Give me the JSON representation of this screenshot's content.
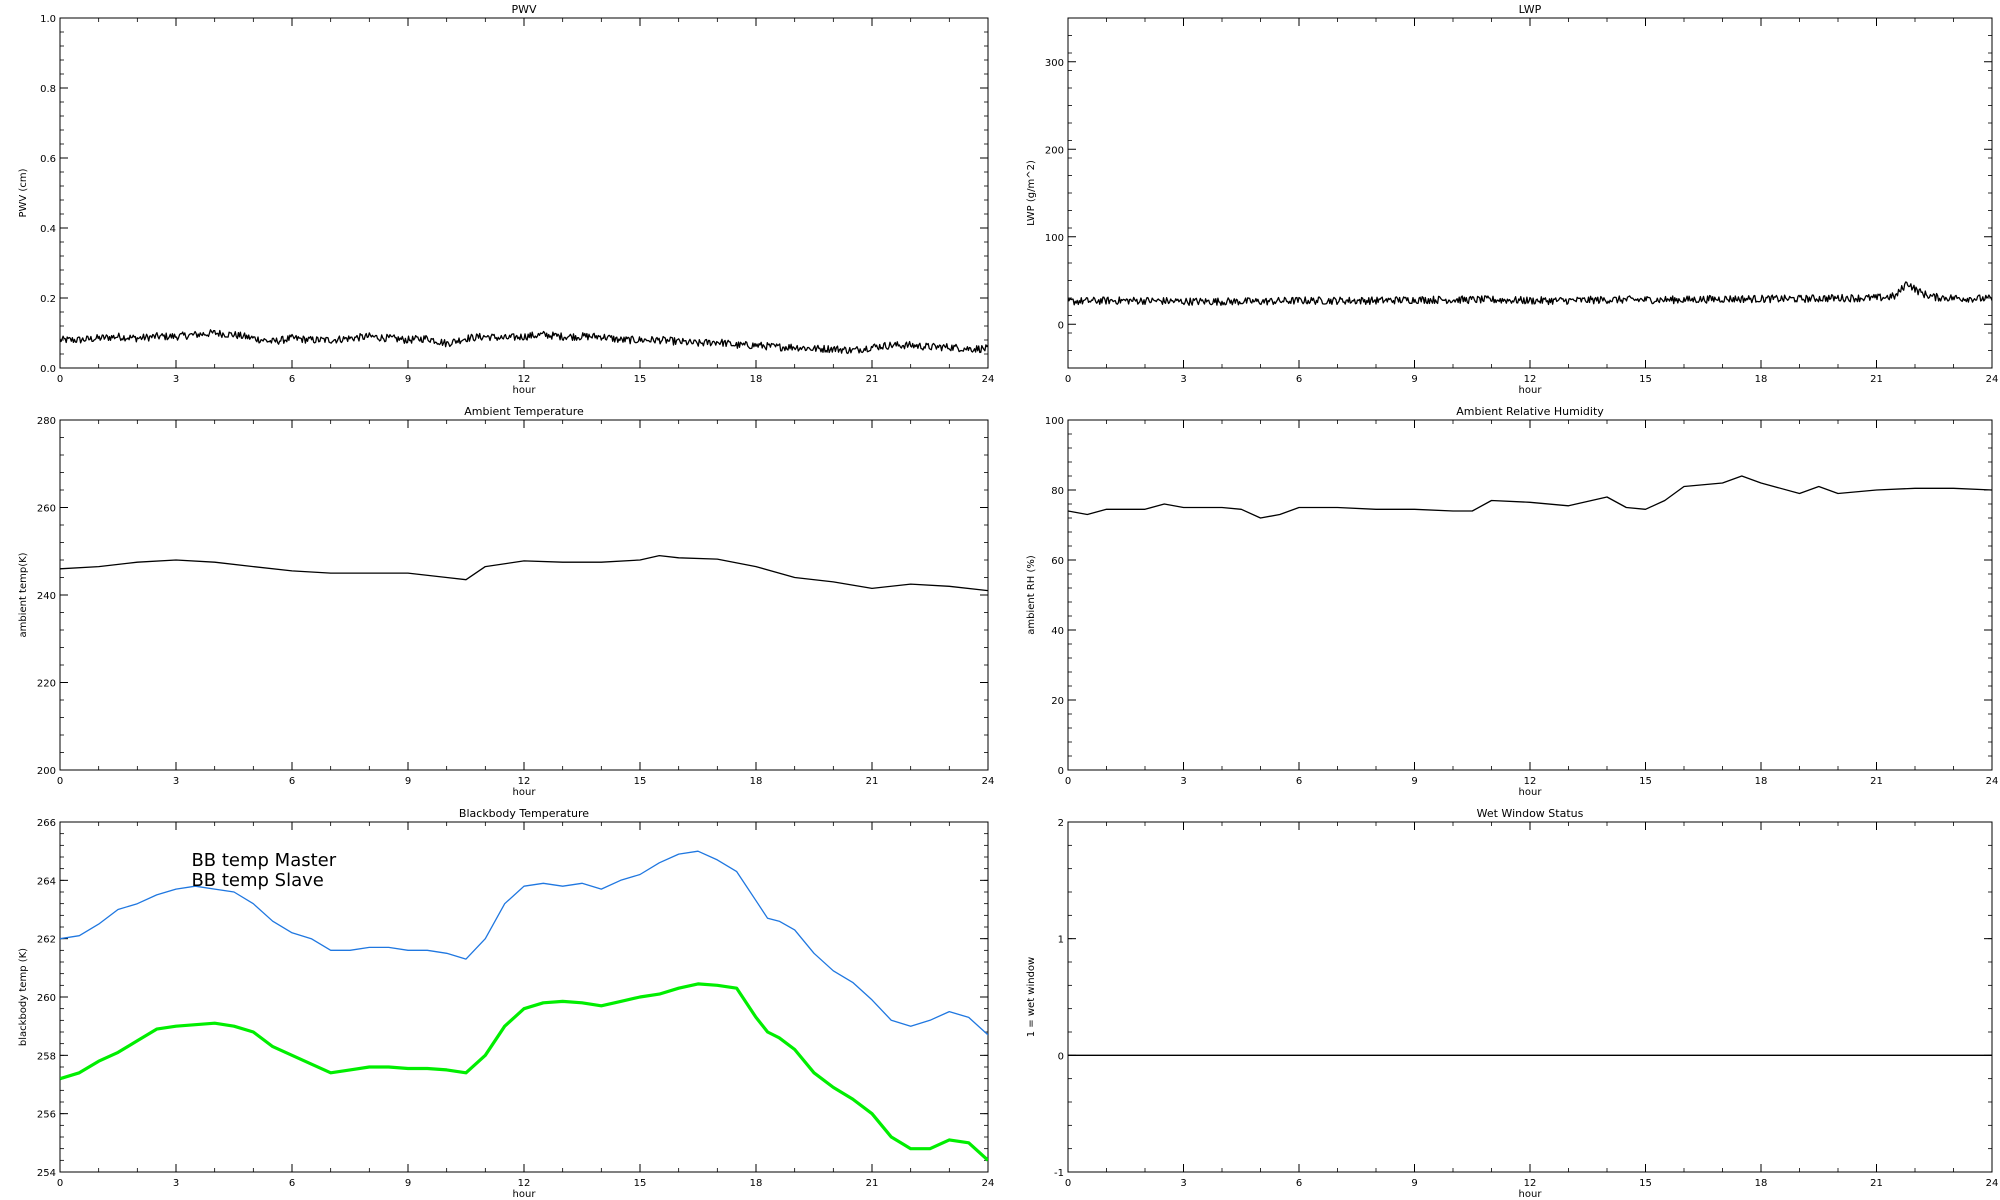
{
  "chart_data": [
    {
      "type": "line",
      "title": "PWV",
      "xlabel": "hour",
      "ylabel": "PWV (cm)",
      "xlim": [
        0,
        24
      ],
      "ylim": [
        0,
        1.0
      ],
      "xticks": [
        "0",
        "3",
        "6",
        "9",
        "12",
        "15",
        "18",
        "21",
        "24"
      ],
      "yticks": [
        "0.0",
        "0.2",
        "0.4",
        "0.6",
        "0.8",
        "1.0"
      ],
      "series": [
        {
          "color": "#000000",
          "noisy": true,
          "x": [
            0,
            0.5,
            1,
            1.5,
            2,
            2.5,
            3,
            3.5,
            4,
            4.5,
            5,
            5.5,
            6,
            6.5,
            7,
            7.5,
            8,
            8.5,
            9,
            9.5,
            10,
            10.5,
            11,
            11.5,
            12,
            12.5,
            13,
            13.5,
            14,
            14.5,
            15,
            15.5,
            16,
            16.5,
            17,
            17.5,
            18,
            18.5,
            19,
            19.5,
            20,
            20.5,
            21,
            21.5,
            22,
            22.5,
            23,
            23.5,
            24
          ],
          "y": [
            0.08,
            0.08,
            0.085,
            0.09,
            0.085,
            0.09,
            0.09,
            0.095,
            0.1,
            0.095,
            0.085,
            0.075,
            0.085,
            0.08,
            0.08,
            0.085,
            0.09,
            0.085,
            0.08,
            0.085,
            0.07,
            0.085,
            0.09,
            0.085,
            0.09,
            0.095,
            0.09,
            0.09,
            0.09,
            0.08,
            0.08,
            0.08,
            0.075,
            0.07,
            0.075,
            0.065,
            0.065,
            0.06,
            0.06,
            0.055,
            0.055,
            0.05,
            0.06,
            0.065,
            0.065,
            0.06,
            0.06,
            0.055,
            0.055
          ]
        }
      ]
    },
    {
      "type": "line",
      "title": "LWP",
      "xlabel": "hour",
      "ylabel": "LWP (g/m^2)",
      "xlim": [
        0,
        24
      ],
      "ylim": [
        -50,
        350
      ],
      "xticks": [
        "0",
        "3",
        "6",
        "9",
        "12",
        "15",
        "18",
        "21",
        "24"
      ],
      "yticks": [
        "0",
        "100",
        "200",
        "300"
      ],
      "series": [
        {
          "color": "#000000",
          "noisy": true,
          "x": [
            0,
            1,
            2,
            3,
            4,
            5,
            6,
            7,
            8,
            9,
            10,
            11,
            12,
            13,
            14,
            15,
            16,
            17,
            18,
            19,
            20,
            21,
            21.5,
            21.8,
            22,
            22.2,
            22.5,
            23,
            24
          ],
          "y": [
            26,
            27,
            27,
            26,
            26,
            26,
            27,
            27,
            27,
            28,
            28,
            28,
            27,
            27,
            28,
            28,
            28,
            29,
            29,
            29,
            30,
            30,
            32,
            48,
            40,
            35,
            31,
            30,
            29
          ]
        }
      ]
    },
    {
      "type": "line",
      "title": "Ambient Temperature",
      "xlabel": "hour",
      "ylabel": "ambient temp(K)",
      "xlim": [
        0,
        24
      ],
      "ylim": [
        200,
        280
      ],
      "xticks": [
        "0",
        "3",
        "6",
        "9",
        "12",
        "15",
        "18",
        "21",
        "24"
      ],
      "yticks": [
        "200",
        "220",
        "240",
        "260",
        "280"
      ],
      "series": [
        {
          "color": "#000000",
          "noisy": false,
          "x": [
            0,
            1,
            2,
            3,
            4,
            5,
            6,
            7,
            8,
            9,
            10,
            10.5,
            11,
            12,
            13,
            14,
            15,
            15.5,
            16,
            17,
            18,
            19,
            20,
            21,
            22,
            23,
            24
          ],
          "y": [
            246,
            246.5,
            247.5,
            248,
            247.5,
            246.5,
            245.5,
            245,
            245,
            245,
            244,
            243.5,
            246.5,
            247.8,
            247.5,
            247.5,
            248,
            249,
            248.5,
            248.2,
            246.5,
            244,
            243,
            241.5,
            242.5,
            242,
            241
          ]
        }
      ]
    },
    {
      "type": "line",
      "title": "Ambient Relative Humidity",
      "xlabel": "hour",
      "ylabel": "ambient RH (%)",
      "xlim": [
        0,
        24
      ],
      "ylim": [
        0,
        100
      ],
      "xticks": [
        "0",
        "3",
        "6",
        "9",
        "12",
        "15",
        "18",
        "21",
        "24"
      ],
      "yticks": [
        "0",
        "20",
        "40",
        "60",
        "80",
        "100"
      ],
      "series": [
        {
          "color": "#000000",
          "noisy": false,
          "x": [
            0,
            0.5,
            1,
            2,
            2.5,
            3,
            4,
            4.5,
            5,
            5.5,
            6,
            7,
            8,
            9,
            10,
            10.5,
            11,
            12,
            13,
            14,
            14.5,
            15,
            15.5,
            16,
            17,
            17.5,
            18,
            19,
            19.5,
            20,
            21,
            22,
            23,
            24
          ],
          "y": [
            74,
            73,
            74.5,
            74.5,
            76,
            75,
            75,
            74.5,
            72,
            73,
            75,
            75,
            74.5,
            74.5,
            74,
            74,
            77,
            76.5,
            75.5,
            78,
            75,
            74.5,
            77,
            81,
            82,
            84,
            82,
            79,
            81,
            79,
            80,
            80.5,
            80.5,
            80
          ]
        }
      ]
    },
    {
      "type": "line",
      "title": "Blackbody Temperature",
      "xlabel": "hour",
      "ylabel": "blackbody temp (K)",
      "xlim": [
        0,
        24
      ],
      "ylim": [
        254,
        266
      ],
      "xticks": [
        "0",
        "3",
        "6",
        "9",
        "12",
        "15",
        "18",
        "21",
        "24"
      ],
      "yticks": [
        "254",
        "256",
        "258",
        "260",
        "262",
        "264",
        "266"
      ],
      "legend": [
        "BB temp Master",
        "BB temp Slave"
      ],
      "series": [
        {
          "name": "BB temp Master",
          "color": "#1f77e0",
          "width": 1.3,
          "x": [
            0,
            0.5,
            1,
            1.5,
            2,
            2.5,
            3,
            3.5,
            4,
            4.5,
            5,
            5.5,
            6,
            6.5,
            7,
            7.5,
            8,
            8.5,
            9,
            9.5,
            10,
            10.5,
            11,
            11.5,
            12,
            12.5,
            13,
            13.5,
            14,
            14.5,
            15,
            15.5,
            16,
            16.5,
            17,
            17.5,
            18,
            18.3,
            18.6,
            19,
            19.5,
            20,
            20.5,
            21,
            21.5,
            22,
            22.5,
            23,
            23.5,
            24
          ],
          "y": [
            262,
            262.1,
            262.5,
            263,
            263.2,
            263.5,
            263.7,
            263.8,
            263.7,
            263.6,
            263.2,
            262.6,
            262.2,
            262,
            261.6,
            261.6,
            261.7,
            261.7,
            261.6,
            261.6,
            261.5,
            261.3,
            262,
            263.2,
            263.8,
            263.9,
            263.8,
            263.9,
            263.7,
            264,
            264.2,
            264.6,
            264.9,
            265,
            264.7,
            264.3,
            263.3,
            262.7,
            262.6,
            262.3,
            261.5,
            260.9,
            260.5,
            259.9,
            259.2,
            259,
            259.2,
            259.5,
            259.3,
            258.7
          ]
        },
        {
          "name": "BB temp Slave",
          "color": "#00ee00",
          "width": 3.2,
          "x": [
            0,
            0.5,
            1,
            1.5,
            2,
            2.5,
            3,
            3.5,
            4,
            4.5,
            5,
            5.5,
            6,
            6.5,
            7,
            7.5,
            8,
            8.5,
            9,
            9.5,
            10,
            10.5,
            11,
            11.5,
            12,
            12.5,
            13,
            13.5,
            14,
            14.5,
            15,
            15.5,
            16,
            16.5,
            17,
            17.5,
            18,
            18.3,
            18.6,
            19,
            19.5,
            20,
            20.5,
            21,
            21.5,
            22,
            22.5,
            23,
            23.5,
            24
          ],
          "y": [
            257.2,
            257.4,
            257.8,
            258.1,
            258.5,
            258.9,
            259,
            259.05,
            259.1,
            259,
            258.8,
            258.3,
            258,
            257.7,
            257.4,
            257.5,
            257.6,
            257.6,
            257.55,
            257.55,
            257.5,
            257.4,
            258,
            259,
            259.6,
            259.8,
            259.85,
            259.8,
            259.7,
            259.85,
            260,
            260.1,
            260.3,
            260.45,
            260.4,
            260.3,
            259.3,
            258.8,
            258.6,
            258.2,
            257.4,
            256.9,
            256.5,
            256,
            255.2,
            254.8,
            254.8,
            255.1,
            255,
            254.4
          ]
        }
      ]
    },
    {
      "type": "line",
      "title": "Wet Window Status",
      "xlabel": "hour",
      "ylabel": "1 = wet window",
      "xlim": [
        0,
        24
      ],
      "ylim": [
        -1,
        2
      ],
      "xticks": [
        "0",
        "3",
        "6",
        "9",
        "12",
        "15",
        "18",
        "21",
        "24"
      ],
      "yticks": [
        "-1",
        "0",
        "1",
        "2"
      ],
      "series": [
        {
          "color": "#000000",
          "noisy": false,
          "x": [
            0,
            24
          ],
          "y": [
            0,
            0
          ]
        }
      ]
    }
  ]
}
